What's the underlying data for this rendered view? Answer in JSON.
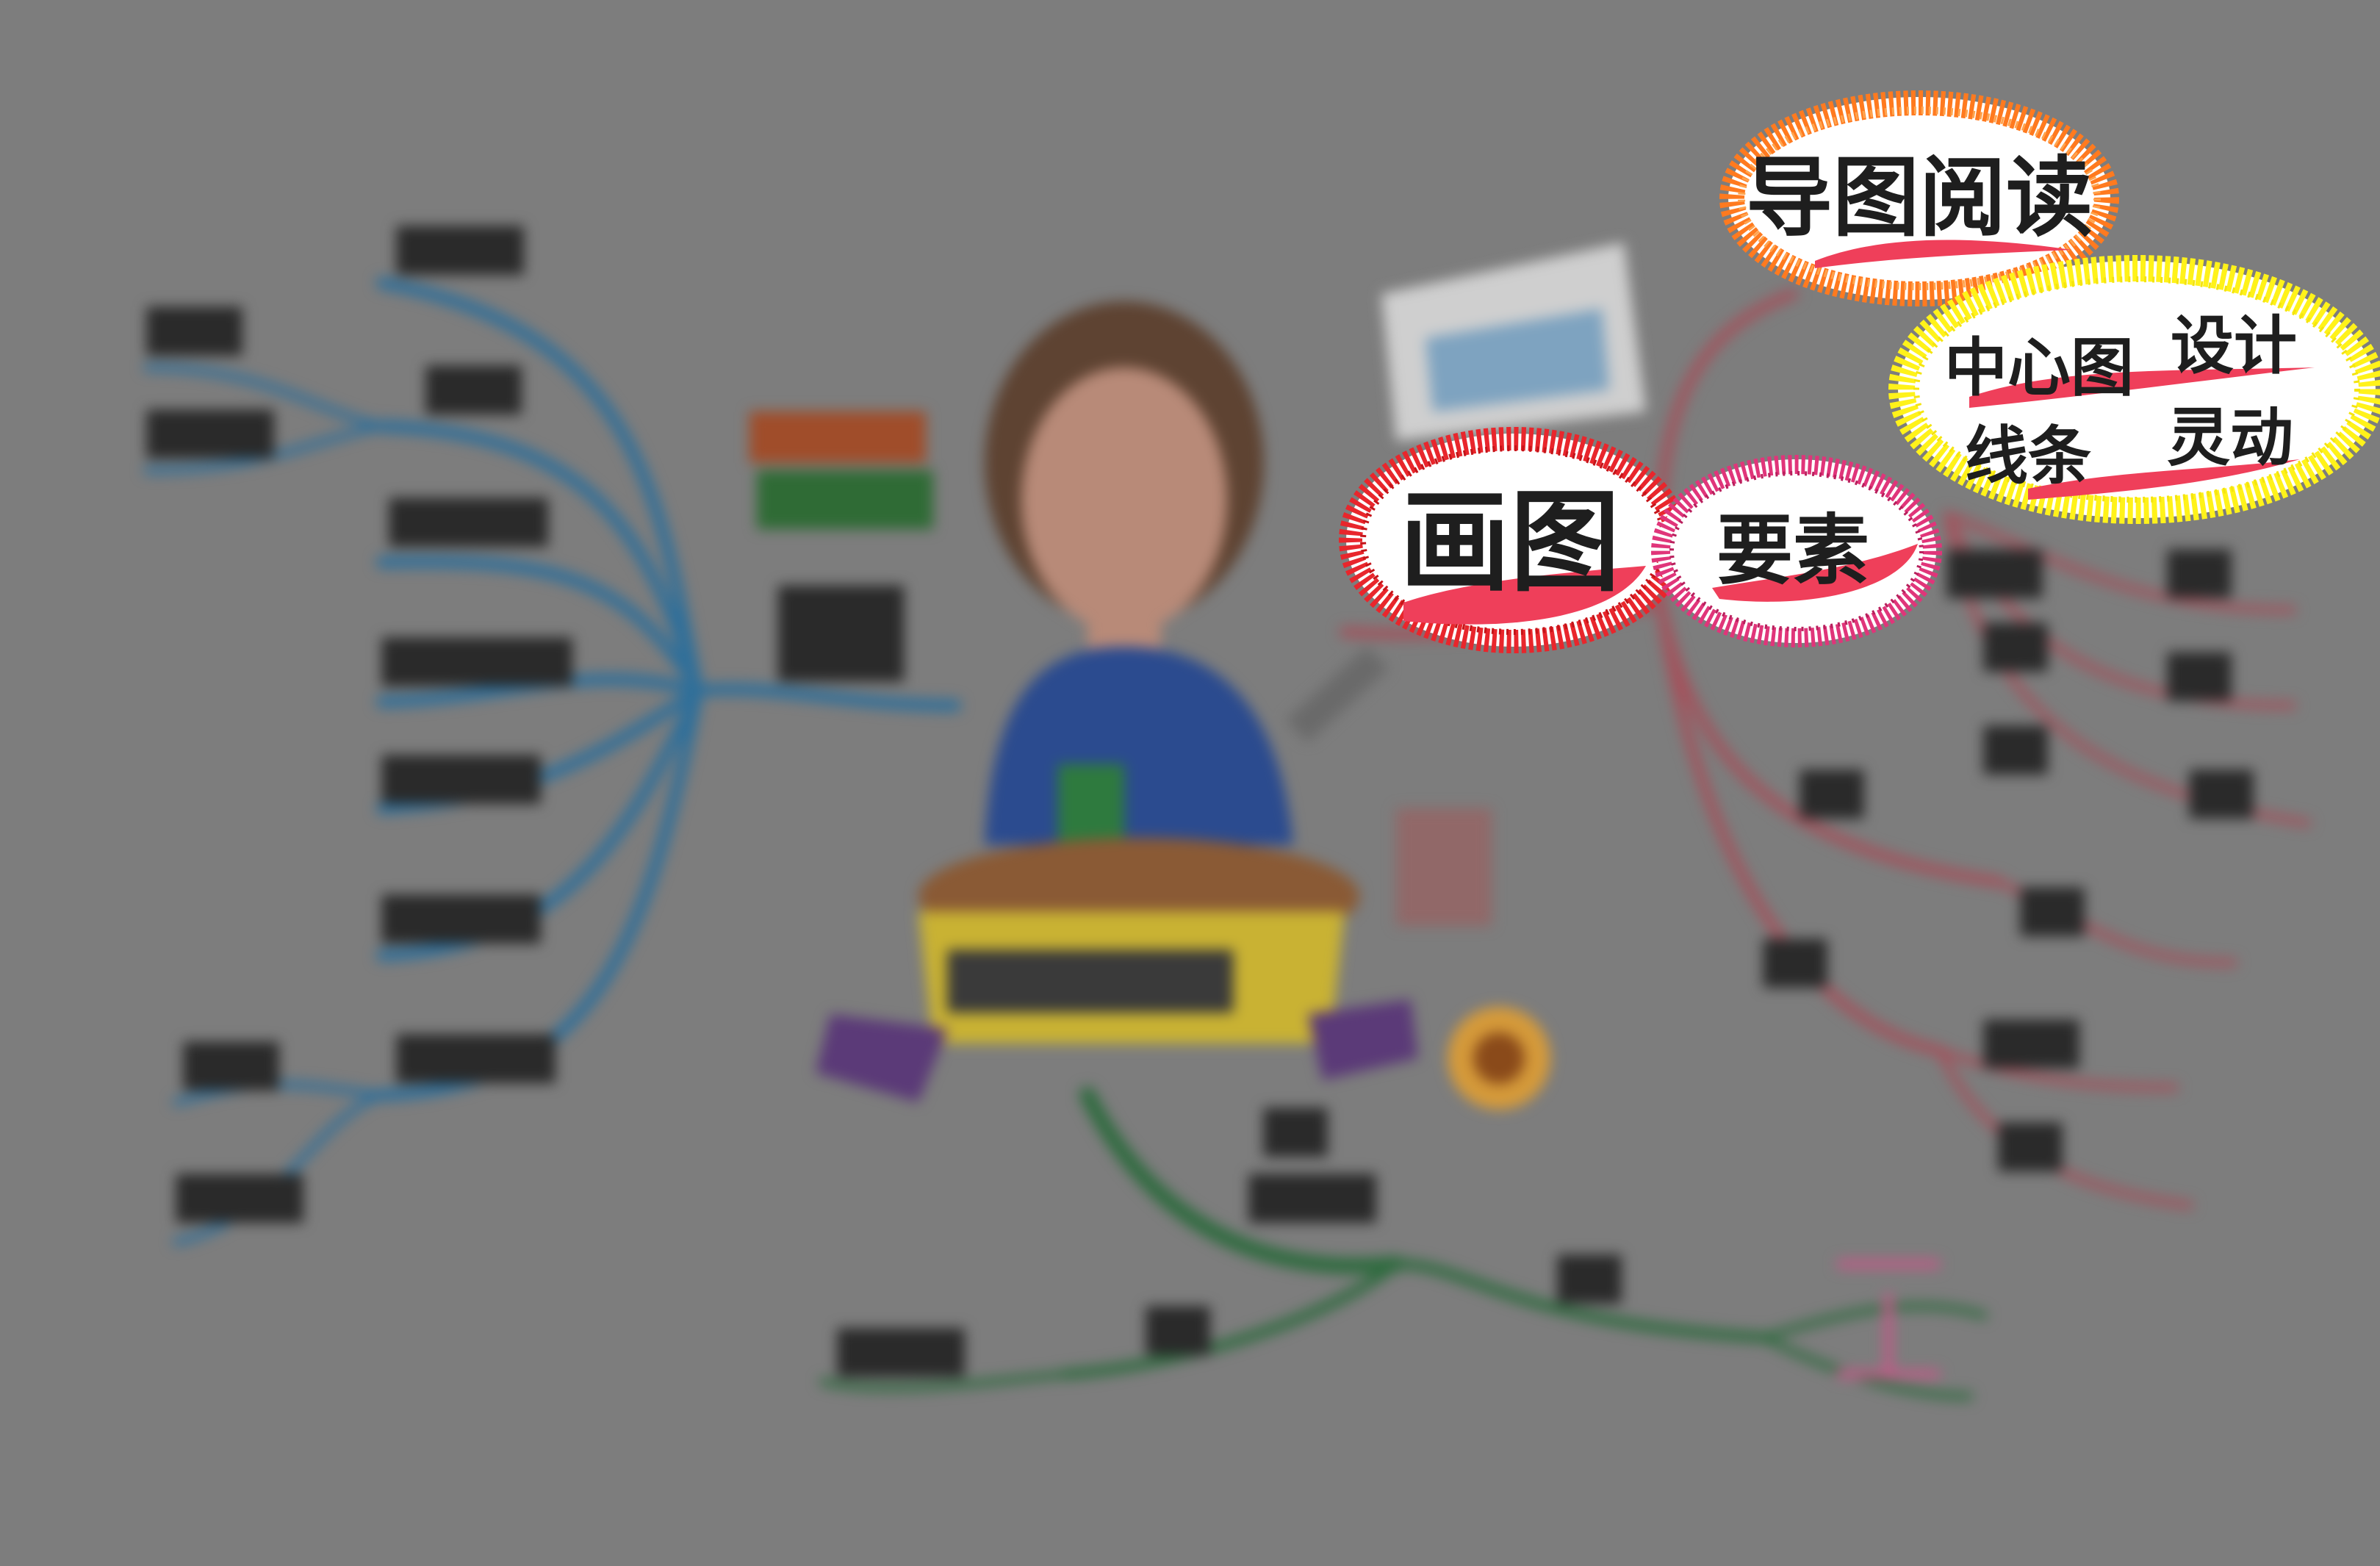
{
  "highlights": {
    "reading": "导图阅读",
    "drawing": "画图",
    "elements": "要素",
    "center_design": {
      "line1_left": "中心图",
      "line1_right": "设计",
      "line2_left": "线条",
      "line2_right": "灵动"
    }
  },
  "colors": {
    "background": "#7d7d7d",
    "blue_branch": "#2f6f9a",
    "red_branch": "#a3525c",
    "green_branch": "#2f6b3f",
    "orange_ring": "#ff7a1f",
    "red_ring": "#e8262c",
    "magenta_ring": "#e0357a",
    "yellow_ring": "#fff21a",
    "highlight_fill": "#ef3f5a"
  },
  "icons": [
    "teacher-illustration-icon",
    "book-stack-icon",
    "picture-frame-icon",
    "flower-icon",
    "seal-stamp-icon",
    "banner-icon"
  ]
}
